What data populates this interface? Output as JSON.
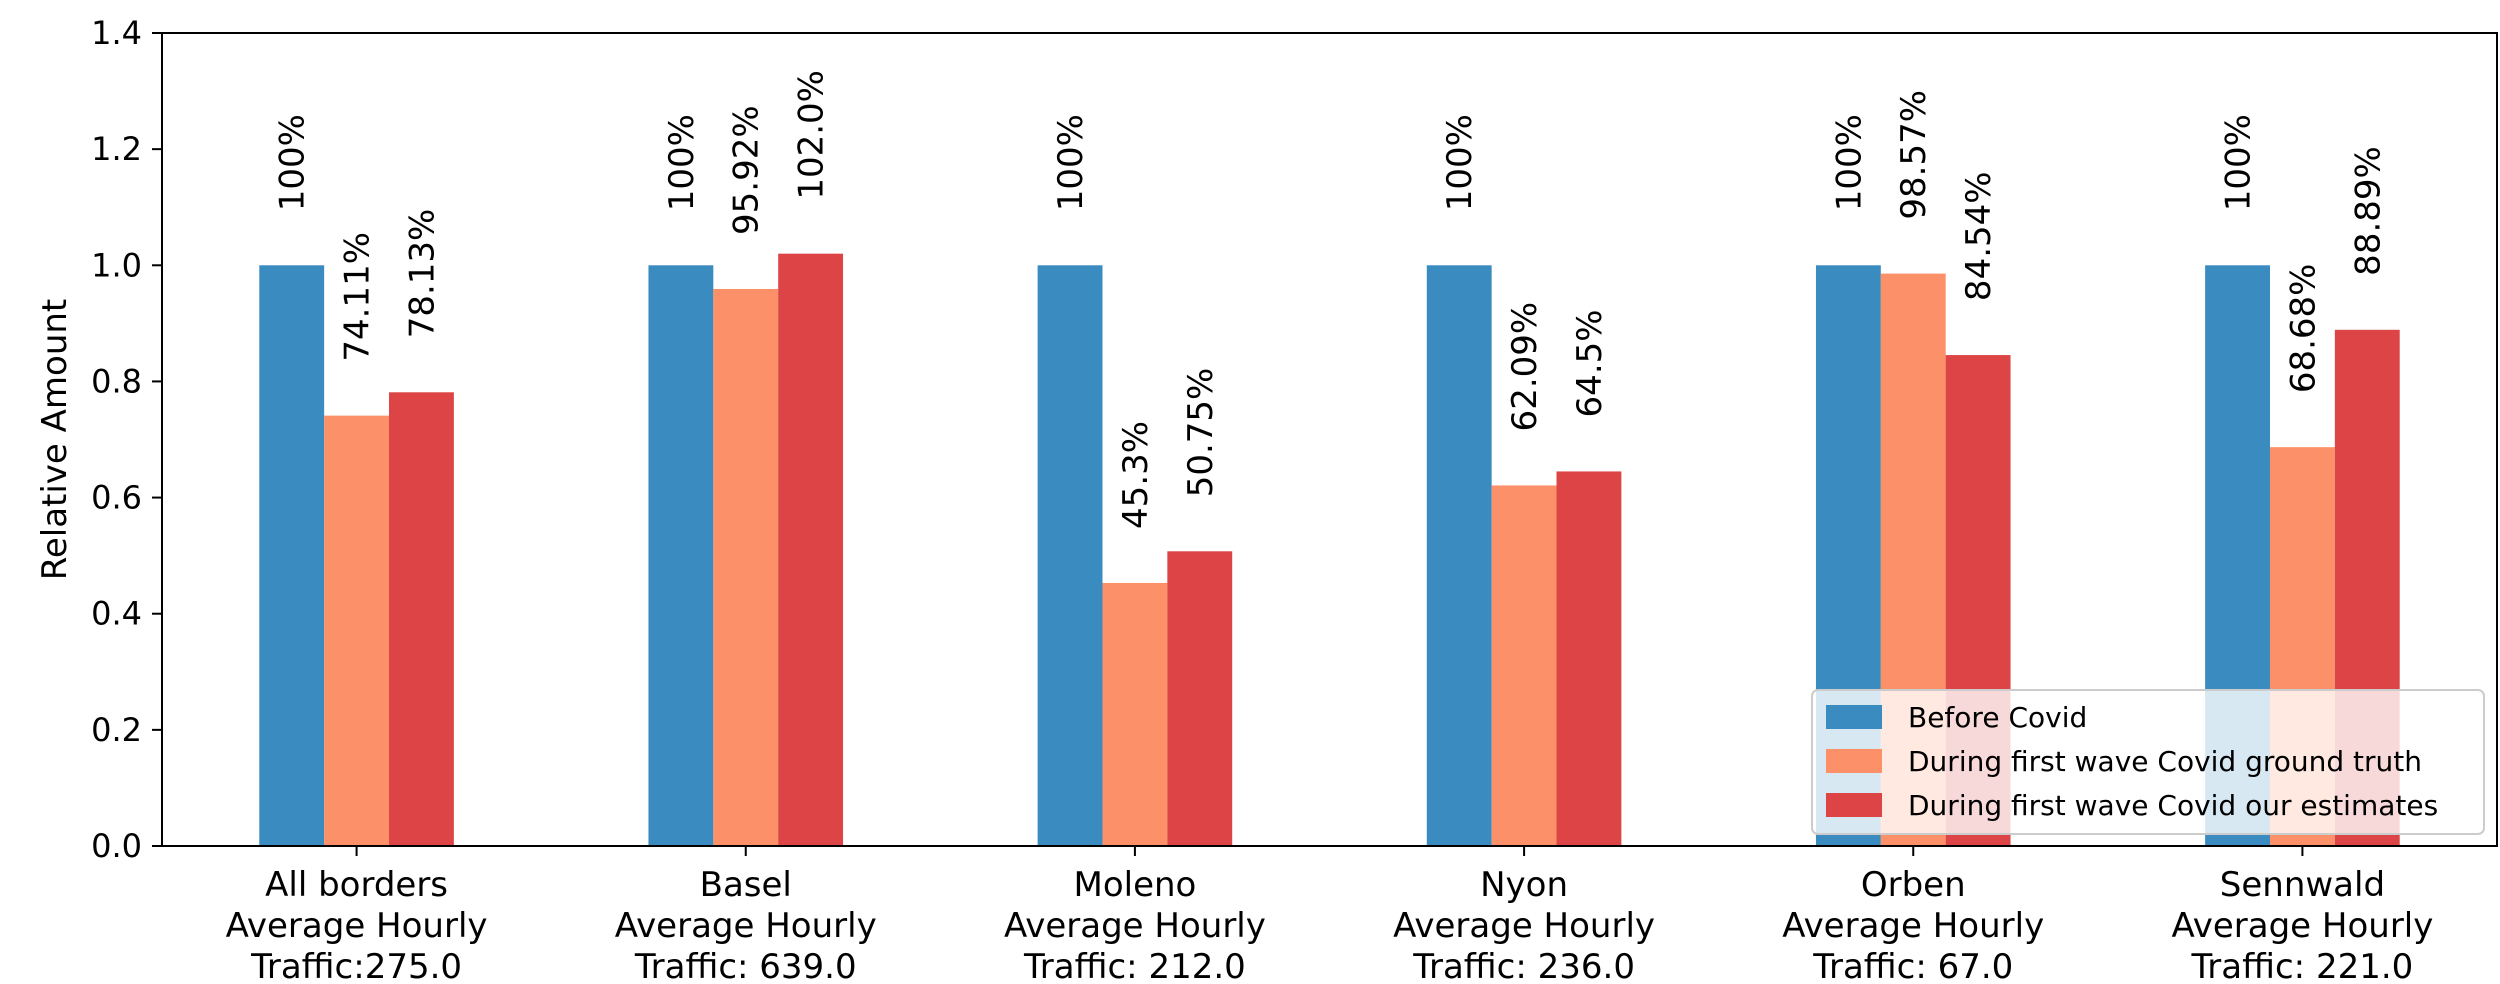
{
  "chart_data": {
    "type": "bar",
    "title": "",
    "ylabel": "Relative Amount",
    "xlabel": "",
    "ylim": [
      0,
      1.4
    ],
    "yticks": [
      "0.0",
      "0.2",
      "0.4",
      "0.6",
      "0.8",
      "1.0",
      "1.2",
      "1.4"
    ],
    "grid": false,
    "legend_position": "bottom-right",
    "categories": [
      [
        "All borders",
        "Average Hourly",
        "Traffic:275.0"
      ],
      [
        "Basel",
        "Average Hourly",
        "Traffic: 639.0"
      ],
      [
        "Moleno",
        "Average Hourly",
        "Traffic: 212.0"
      ],
      [
        "Nyon",
        "Average Hourly",
        "Traffic: 236.0"
      ],
      [
        "Orben",
        "Average Hourly",
        "Traffic: 67.0"
      ],
      [
        "Sennwald",
        "Average Hourly",
        "Traffic: 221.0"
      ]
    ],
    "series": [
      {
        "name": "Before Covid",
        "color": "#3a8bc0",
        "values": [
          1.0,
          1.0,
          1.0,
          1.0,
          1.0,
          1.0
        ],
        "labels": [
          "100%",
          "100%",
          "100%",
          "100%",
          "100%",
          "100%"
        ]
      },
      {
        "name": "During first wave Covid ground truth",
        "color": "#fc9068",
        "values": [
          0.7411,
          0.9592,
          0.453,
          0.6209,
          0.9857,
          0.6868
        ],
        "labels": [
          "74.11%",
          "95.92%",
          "45.3%",
          "62.09%",
          "98.57%",
          "68.68%"
        ]
      },
      {
        "name": "During first wave Covid our estimates",
        "color": "#dc4446",
        "values": [
          0.7813,
          1.02,
          0.5075,
          0.645,
          0.8454,
          0.8889
        ],
        "labels": [
          "78.13%",
          "102.0%",
          "50.75%",
          "64.5%",
          "84.54%",
          "88.89%"
        ]
      }
    ]
  }
}
